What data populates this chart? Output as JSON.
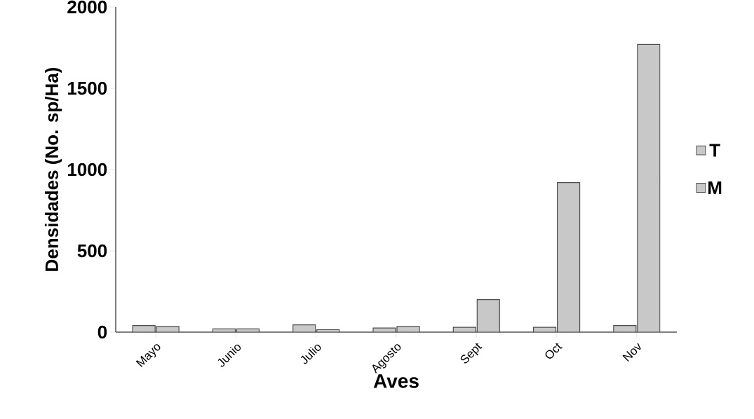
{
  "chart_data": {
    "type": "bar",
    "xlabel": "Aves",
    "ylabel": "Densidades (No. sp/Ha)",
    "categories": [
      "Mayo",
      "Junio",
      "Julio",
      "Agosto",
      "Sept",
      "Oct",
      "Nov"
    ],
    "series": [
      {
        "name": "T",
        "color": "#c8c8c8",
        "values": [
          40,
          20,
          45,
          25,
          30,
          30,
          40
        ]
      },
      {
        "name": "M",
        "color": "#c8c8c8",
        "values": [
          35,
          20,
          15,
          35,
          200,
          920,
          1770
        ]
      }
    ],
    "ylim": [
      0,
      2000
    ],
    "yticks": [
      0,
      500,
      1000,
      1500,
      2000
    ],
    "grid": false,
    "legend": "right"
  }
}
